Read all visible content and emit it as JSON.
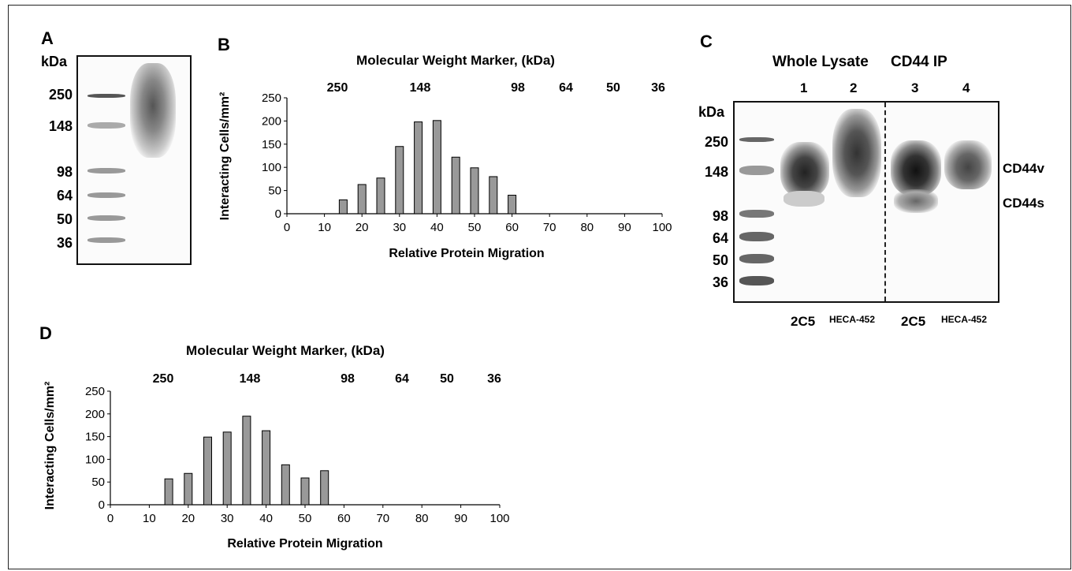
{
  "panels": {
    "A": {
      "letter": "A",
      "unit": "kDa",
      "markers": [
        "250",
        "148",
        "98",
        "64",
        "50",
        "36"
      ]
    },
    "B": {
      "letter": "B"
    },
    "C": {
      "letter": "C",
      "unit": "kDa",
      "group_whole": "Whole Lysate",
      "group_ip": "CD44 IP",
      "lanes": [
        "1",
        "2",
        "3",
        "4"
      ],
      "markers": [
        "250",
        "148",
        "98",
        "64",
        "50",
        "36"
      ],
      "band_labels": [
        "CD44v",
        "CD44s"
      ],
      "antibodies": [
        "2C5",
        "HECA-452",
        "2C5",
        "HECA-452"
      ]
    },
    "D": {
      "letter": "D"
    }
  },
  "chart_data": [
    {
      "panel": "B",
      "type": "bar",
      "title": "Molecular Weight Marker, (kDa)",
      "top_axis_ticks": [
        "250",
        "148",
        "98",
        "64",
        "50",
        "36"
      ],
      "xlabel": "Relative Protein Migration",
      "ylabel": "Interacting Cells/mm²",
      "x_ticks": [
        0,
        10,
        20,
        30,
        40,
        50,
        60,
        70,
        80,
        90,
        100
      ],
      "y_ticks": [
        0,
        50,
        100,
        150,
        200,
        250
      ],
      "xlim": [
        0,
        100
      ],
      "ylim": [
        0,
        250
      ],
      "x": [
        15,
        20,
        25,
        30,
        35,
        40,
        45,
        50,
        55,
        60
      ],
      "values": [
        30,
        63,
        77,
        145,
        198,
        201,
        122,
        99,
        80,
        40
      ]
    },
    {
      "panel": "D",
      "type": "bar",
      "title": "Molecular Weight Marker, (kDa)",
      "top_axis_ticks": [
        "250",
        "148",
        "98",
        "64",
        "50",
        "36"
      ],
      "xlabel": "Relative Protein Migration",
      "ylabel": "Interacting Cells/mm²",
      "x_ticks": [
        0,
        10,
        20,
        30,
        40,
        50,
        60,
        70,
        80,
        90,
        100
      ],
      "y_ticks": [
        0,
        50,
        100,
        150,
        200,
        250
      ],
      "xlim": [
        0,
        100
      ],
      "ylim": [
        0,
        250
      ],
      "x": [
        15,
        20,
        25,
        30,
        35,
        40,
        45,
        50,
        55
      ],
      "values": [
        57,
        69,
        149,
        160,
        195,
        163,
        88,
        59,
        75
      ]
    }
  ]
}
